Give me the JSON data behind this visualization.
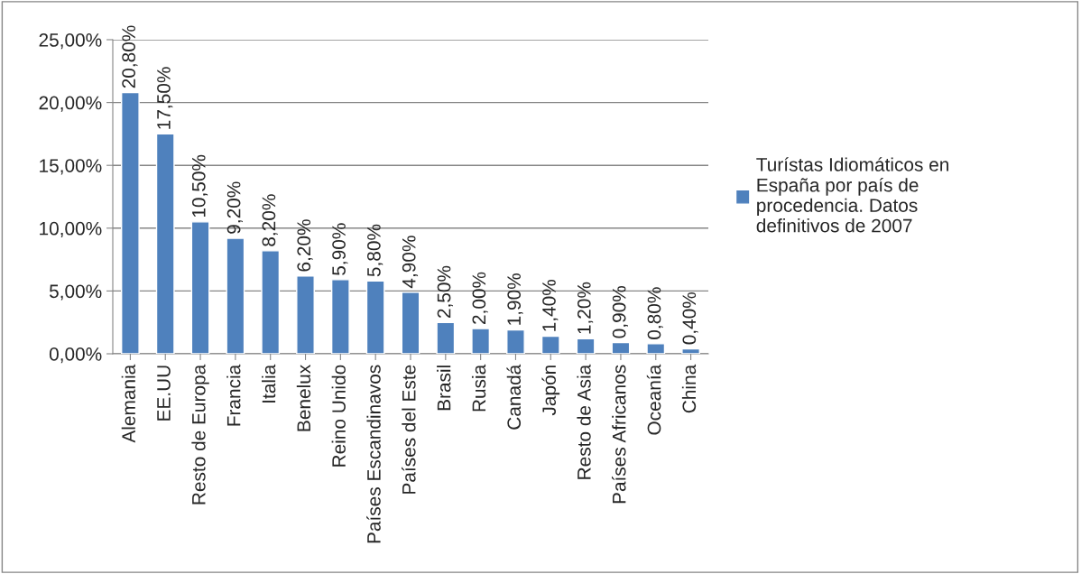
{
  "chart_data": {
    "type": "bar",
    "categories": [
      "Alemania",
      "EE.UU",
      "Resto de Europa",
      "Francia",
      "Italia",
      "Benelux",
      "Reino Unido",
      "Países Escandinavos",
      "Países del Este",
      "Brasil",
      "Rusia",
      "Canadá",
      "Japón",
      "Resto de Asia",
      "Países Africanos",
      "Oceanía",
      "China"
    ],
    "series": [
      {
        "name": "Turístas Idiomáticos en España por país de procedencia. Datos definitivos de 2007",
        "color": "#4f81bd",
        "values": [
          20.8,
          17.5,
          10.5,
          9.2,
          8.2,
          6.2,
          5.9,
          5.8,
          4.9,
          2.5,
          2.0,
          1.9,
          1.4,
          1.2,
          0.9,
          0.8,
          0.4
        ],
        "value_labels": [
          "20,80%",
          "17,50%",
          "10,50%",
          "9,20%",
          "8,20%",
          "6,20%",
          "5,90%",
          "5,80%",
          "4,90%",
          "2,50%",
          "2,00%",
          "1,90%",
          "1,40%",
          "1,20%",
          "0,90%",
          "0,80%",
          "0,40%"
        ]
      }
    ],
    "ylim": [
      0,
      25
    ],
    "yticks": [
      {
        "value": 0,
        "label": "0,00%"
      },
      {
        "value": 5,
        "label": "5,00%"
      },
      {
        "value": 10,
        "label": "10,00%"
      },
      {
        "value": 15,
        "label": "15,00%"
      },
      {
        "value": 20,
        "label": "20,00%"
      },
      {
        "value": 25,
        "label": "25,00%"
      }
    ],
    "grid": "y",
    "legend": "right"
  }
}
